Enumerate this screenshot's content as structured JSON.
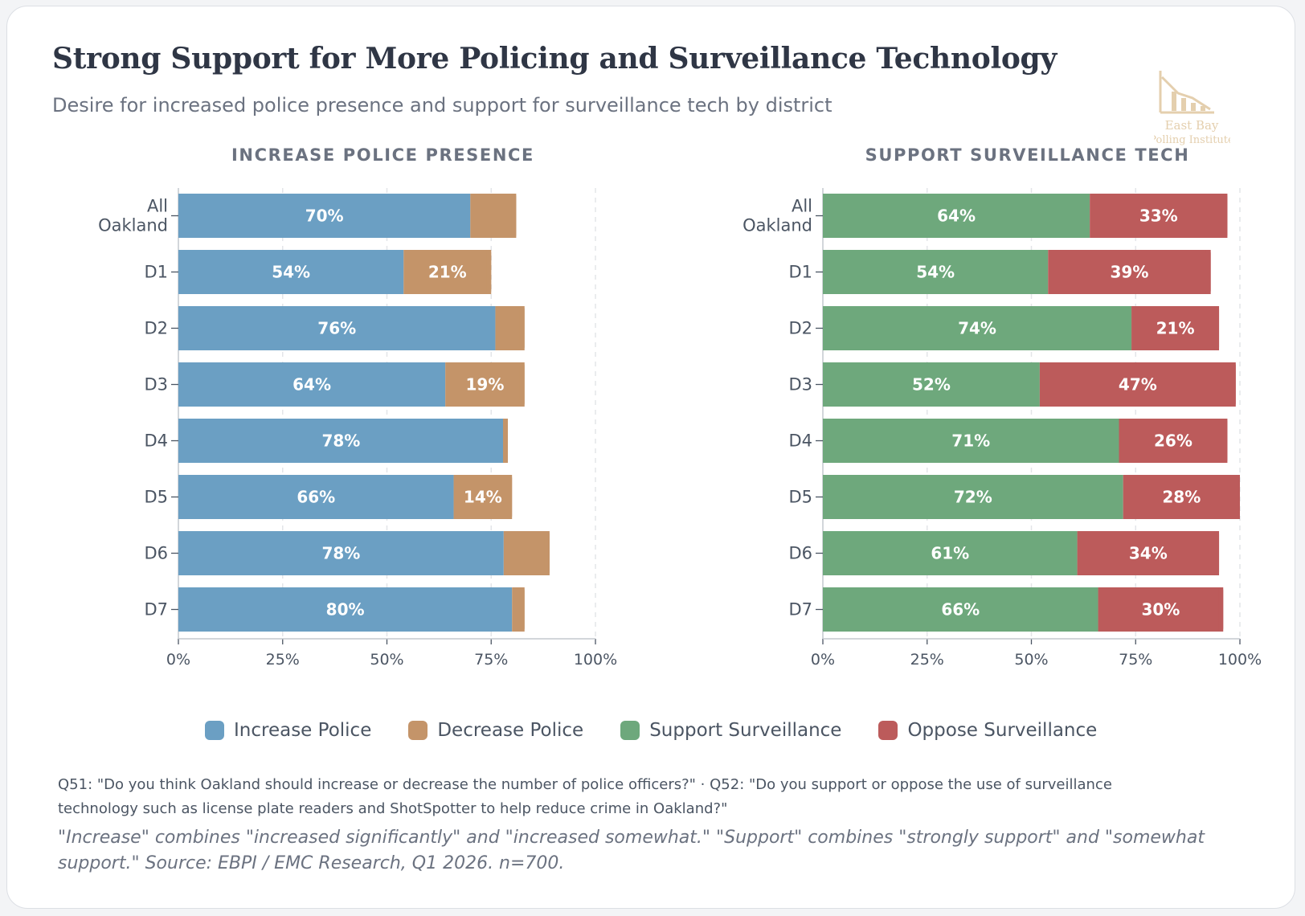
{
  "header": {
    "title": "Strong Support for More Policing and Surveillance Technology",
    "subtitle": "Desire for increased police presence and support for surveillance tech by district"
  },
  "logo": {
    "line1": "East Bay",
    "line2": "Polling Institute"
  },
  "chart_data": [
    {
      "type": "bar",
      "orientation": "horizontal",
      "stacked": true,
      "title": "INCREASE POLICE PRESENCE",
      "categories": [
        "All Oakland",
        "D1",
        "D2",
        "D3",
        "D4",
        "D5",
        "D6",
        "D7"
      ],
      "series": [
        {
          "name": "Increase Police",
          "color": "#6b9fc3",
          "values": [
            70,
            54,
            76,
            64,
            78,
            66,
            78,
            80
          ],
          "labels": [
            "70%",
            "54%",
            "76%",
            "64%",
            "78%",
            "66%",
            "78%",
            "80%"
          ]
        },
        {
          "name": "Decrease Police",
          "color": "#c49469",
          "values": [
            11,
            21,
            7,
            19,
            1,
            14,
            11,
            3
          ],
          "labels": [
            "",
            "21%",
            "",
            "19%",
            "",
            "14%",
            "",
            ""
          ]
        }
      ],
      "xlim": [
        0,
        100
      ],
      "ticks": [
        "0%",
        "25%",
        "50%",
        "75%",
        "100%"
      ],
      "grid": true
    },
    {
      "type": "bar",
      "orientation": "horizontal",
      "stacked": true,
      "title": "SUPPORT SURVEILLANCE TECH",
      "categories": [
        "All Oakland",
        "D1",
        "D2",
        "D3",
        "D4",
        "D5",
        "D6",
        "D7"
      ],
      "series": [
        {
          "name": "Support Surveillance",
          "color": "#6ea87c",
          "values": [
            64,
            54,
            74,
            52,
            71,
            72,
            61,
            66
          ],
          "labels": [
            "64%",
            "54%",
            "74%",
            "52%",
            "71%",
            "72%",
            "61%",
            "66%"
          ]
        },
        {
          "name": "Oppose Surveillance",
          "color": "#bc5b5b",
          "values": [
            33,
            39,
            21,
            47,
            26,
            28,
            34,
            30
          ],
          "labels": [
            "33%",
            "39%",
            "21%",
            "47%",
            "26%",
            "28%",
            "34%",
            "30%"
          ]
        }
      ],
      "xlim": [
        0,
        100
      ],
      "ticks": [
        "0%",
        "25%",
        "50%",
        "75%",
        "100%"
      ],
      "grid": true
    }
  ],
  "legend": [
    {
      "label": "Increase Police",
      "color": "#6b9fc3"
    },
    {
      "label": "Decrease Police",
      "color": "#c49469"
    },
    {
      "label": "Support Surveillance",
      "color": "#6ea87c"
    },
    {
      "label": "Oppose Surveillance",
      "color": "#bc5b5b"
    }
  ],
  "footer": {
    "note": "Q51: \"Do you think Oakland should increase or decrease the number of police officers?\" · Q52: \"Do you support or oppose the use of surveillance technology such as license plate readers and ShotSpotter to help reduce crime in Oakland?\"",
    "source": "\"Increase\" combines \"increased significantly\" and \"increased somewhat.\" \"Support\" combines \"strongly support\" and \"somewhat support.\" Source: EBPI / EMC Research, Q1 2026. n=700."
  }
}
